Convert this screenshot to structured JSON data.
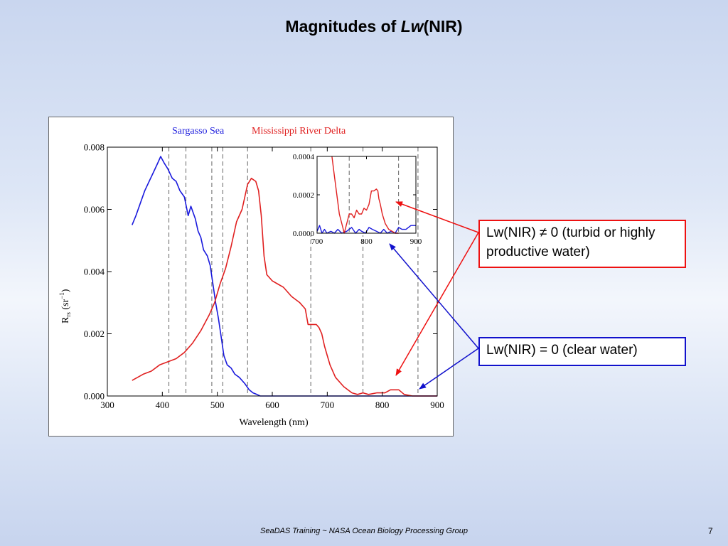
{
  "slide": {
    "title_prefix": "Magnitudes of ",
    "title_italic": "Lw",
    "title_suffix": "(NIR)",
    "footer": "SeaDAS Training ~ NASA Ocean Biology Processing Group",
    "page_number": "7"
  },
  "callouts": {
    "turbid": "Lw(NIR) ≠ 0 (turbid or highly productive water)",
    "clear": "Lw(NIR) = 0 (clear water)"
  },
  "colors": {
    "sargasso": "#1a1add",
    "mississippi": "#e02020",
    "callout_red": "#ee1111",
    "callout_blue": "#1111cc"
  },
  "chart_data": [
    {
      "type": "line",
      "legend": [
        "Sargasso Sea",
        "Mississippi River Delta"
      ],
      "xlabel": "Wavelength (nm)",
      "ylabel_main": "R",
      "ylabel_sub": "rs",
      "ylabel_unit_open": " (sr",
      "ylabel_unit_sup": "−1",
      "ylabel_unit_close": ")",
      "xlim": [
        300,
        900
      ],
      "ylim": [
        0,
        0.008
      ],
      "xticks": [
        "300",
        "400",
        "500",
        "600",
        "700",
        "800",
        "900"
      ],
      "yticks": [
        "0.000",
        "0.002",
        "0.004",
        "0.006",
        "0.008"
      ],
      "band_lines": [
        412,
        443,
        490,
        510,
        555,
        670,
        765,
        865
      ],
      "series": [
        {
          "name": "Sargasso Sea",
          "x": [
            345,
            352,
            360,
            368,
            376,
            384,
            392,
            397,
            403,
            410,
            418,
            425,
            432,
            440,
            447,
            452,
            460,
            465,
            470,
            475,
            482,
            487,
            492,
            497,
            502,
            507,
            512,
            518,
            525,
            532,
            540,
            550,
            558,
            565,
            572,
            578,
            585,
            595,
            610,
            630,
            660,
            700,
            750,
            800,
            850,
            900
          ],
          "y": [
            0.0055,
            0.0058,
            0.0062,
            0.0066,
            0.0069,
            0.0072,
            0.0075,
            0.0077,
            0.0075,
            0.0073,
            0.007,
            0.0069,
            0.0066,
            0.0064,
            0.0058,
            0.0061,
            0.0057,
            0.0053,
            0.0051,
            0.0047,
            0.0045,
            0.0042,
            0.0036,
            0.003,
            0.0025,
            0.0019,
            0.0013,
            0.001,
            0.0009,
            0.0007,
            0.0006,
            0.0004,
            0.0002,
            0.0001,
            5e-05,
            0.0,
            0.0,
            0.0,
            0.0,
            0.0,
            0.0,
            0.0,
            0.0,
            0.0,
            0.0,
            0.0
          ]
        },
        {
          "name": "Mississippi River Delta",
          "x": [
            345,
            355,
            365,
            380,
            395,
            410,
            425,
            440,
            455,
            470,
            485,
            495,
            505,
            515,
            525,
            535,
            545,
            555,
            562,
            570,
            575,
            580,
            585,
            590,
            600,
            610,
            620,
            635,
            650,
            660,
            665,
            672,
            680,
            685,
            690,
            695,
            700,
            705,
            715,
            730,
            745,
            755,
            765,
            775,
            790,
            805,
            815,
            820,
            830,
            840,
            855,
            870,
            900
          ],
          "y": [
            0.0005,
            0.0006,
            0.0007,
            0.0008,
            0.001,
            0.0011,
            0.0012,
            0.0014,
            0.0017,
            0.0021,
            0.0026,
            0.003,
            0.0036,
            0.0041,
            0.0048,
            0.0056,
            0.006,
            0.0068,
            0.007,
            0.0069,
            0.0066,
            0.0058,
            0.0045,
            0.0039,
            0.0037,
            0.0036,
            0.0035,
            0.0032,
            0.003,
            0.0028,
            0.0023,
            0.0023,
            0.0023,
            0.0022,
            0.002,
            0.0016,
            0.0013,
            0.001,
            0.0006,
            0.0003,
            0.0001,
            5e-05,
            0.0001,
            5e-05,
            0.0001,
            0.0001,
            0.0002,
            0.0002,
            0.0002,
            5e-05,
            0.0,
            0.0,
            0.0
          ]
        }
      ]
    },
    {
      "type": "line",
      "xlim": [
        700,
        900
      ],
      "ylim": [
        0,
        0.0004
      ],
      "xticks": [
        "700",
        "800",
        "900"
      ],
      "yticks": [
        "0.0000",
        "0.0002",
        "0.0004"
      ],
      "band_lines": [
        765,
        865
      ],
      "series": [
        {
          "name": "Sargasso Sea",
          "x": [
            700,
            705,
            710,
            715,
            720,
            728,
            735,
            742,
            750,
            760,
            770,
            778,
            785,
            790,
            798,
            805,
            812,
            820,
            828,
            835,
            842,
            850,
            858,
            865,
            872,
            880,
            890,
            900
          ],
          "y": [
            1e-05,
            4e-05,
            0.0,
            2e-05,
            0.0,
            1e-05,
            0.0,
            2e-05,
            0.0,
            1e-05,
            3e-05,
            0.0,
            2e-05,
            1e-05,
            0.0,
            3e-05,
            2e-05,
            1e-05,
            0.0,
            2e-05,
            0.0,
            1e-05,
            0.0,
            3e-05,
            2e-05,
            2e-05,
            4e-05,
            4e-05
          ]
        },
        {
          "name": "Mississippi River Delta",
          "x": [
            730,
            735,
            740,
            745,
            750,
            755,
            760,
            765,
            770,
            775,
            780,
            785,
            790,
            795,
            800,
            805,
            810,
            815,
            820,
            823,
            825,
            828,
            832,
            838,
            845,
            852,
            858,
            865
          ],
          "y": [
            0.0004,
            0.0003,
            0.0002,
            0.0001,
            5e-05,
            0.0,
            5e-05,
            0.0001,
            0.0001,
            8e-05,
            0.00012,
            0.0001,
            0.0001,
            0.00013,
            0.00012,
            0.00015,
            0.00022,
            0.00022,
            0.00023,
            0.00022,
            0.00018,
            0.00015,
            0.0001,
            5e-05,
            2e-05,
            1e-05,
            0.0,
            0.0
          ]
        }
      ]
    }
  ]
}
